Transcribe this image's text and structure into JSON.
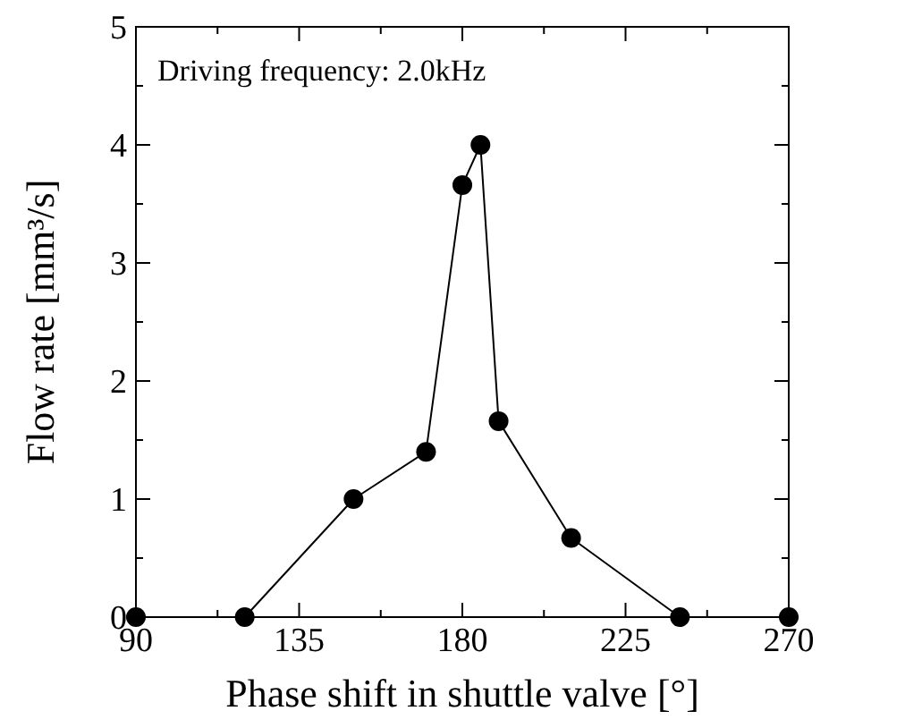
{
  "chart_data": {
    "type": "line",
    "xlabel": "Phase shift in shuttle valve [°]",
    "ylabel": "Flow rate [mm³/s]",
    "annotations": [
      "Driving frequency: 2.0kHz"
    ],
    "x": [
      90,
      120,
      150,
      170,
      180,
      185,
      190,
      210,
      240,
      270
    ],
    "series": [
      {
        "color": "#000000",
        "values": [
          0,
          0,
          1.0,
          1.4,
          3.66,
          4.0,
          1.66,
          0.67,
          0,
          0
        ]
      }
    ],
    "xlim": [
      90,
      270
    ],
    "xticks": [
      90,
      {
        "value": 112.5,
        "label": null
      },
      135,
      {
        "value": 157.5,
        "label": null
      },
      180,
      {
        "value": 202.5,
        "label": null
      },
      225,
      {
        "value": 247.5,
        "label": null
      },
      270
    ],
    "ylim": [
      0,
      5
    ],
    "yticks": [
      0,
      {
        "value": 0.5,
        "label": null
      },
      1,
      {
        "value": 1.5,
        "label": null
      },
      2,
      {
        "value": 2.5,
        "label": null
      },
      3,
      {
        "value": 3.5,
        "label": null
      },
      4,
      {
        "value": 4.5,
        "label": null
      },
      5
    ],
    "marker": "circle",
    "line_style": "solid"
  }
}
